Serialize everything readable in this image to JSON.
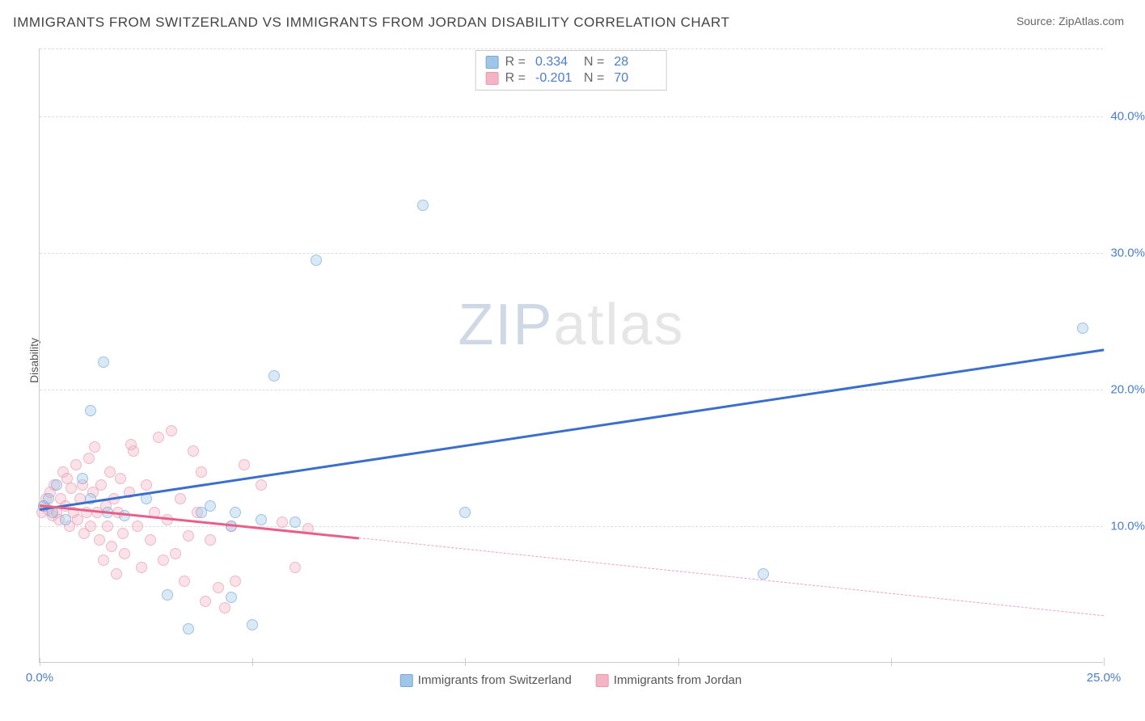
{
  "title": "IMMIGRANTS FROM SWITZERLAND VS IMMIGRANTS FROM JORDAN DISABILITY CORRELATION CHART",
  "source": "Source: ZipAtlas.com",
  "y_axis_label": "Disability",
  "watermark_z": "ZIP",
  "watermark_rest": "atlas",
  "colors": {
    "blue_fill": "#9fc5e8",
    "blue_stroke": "#7ba8d8",
    "blue_line": "#3b6fc9",
    "pink_fill": "#f4b4c4",
    "pink_stroke": "#e89bb0",
    "pink_line": "#e85f8a",
    "axis_text": "#4a7ec9",
    "grid": "#dddddd",
    "background": "#ffffff"
  },
  "xlim": [
    0,
    25
  ],
  "ylim": [
    0,
    45
  ],
  "y_ticks": [
    10,
    20,
    30,
    40
  ],
  "y_tick_labels": [
    "10.0%",
    "20.0%",
    "30.0%",
    "40.0%"
  ],
  "x_ticks": [
    0,
    5,
    10,
    15,
    20,
    25
  ],
  "x_tick_labels": [
    "0.0%",
    "",
    "",
    "",
    "",
    "25.0%"
  ],
  "stats": [
    {
      "swatch": "#9fc5e8",
      "swatch_border": "#7ba8d8",
      "r_label": "R =",
      "r": "0.334",
      "n_label": "N =",
      "n": "28"
    },
    {
      "swatch": "#f4b4c4",
      "swatch_border": "#e89bb0",
      "r_label": "R =",
      "r": "-0.201",
      "n_label": "N =",
      "n": "70"
    }
  ],
  "legend": [
    {
      "swatch": "#9fc5e8",
      "swatch_border": "#7ba8d8",
      "label": "Immigrants from Switzerland"
    },
    {
      "swatch": "#f4b4c4",
      "swatch_border": "#e89bb0",
      "label": "Immigrants from Jordan"
    }
  ],
  "series": {
    "switzerland": {
      "color_class": "blue",
      "trend": {
        "x1": 0,
        "y1": 11.3,
        "x2": 25,
        "y2": 23.0,
        "color": "#3b6fc9"
      },
      "points": [
        [
          0.1,
          11.5
        ],
        [
          0.2,
          12.0
        ],
        [
          0.3,
          11.0
        ],
        [
          0.4,
          13.0
        ],
        [
          0.6,
          10.5
        ],
        [
          1.0,
          13.5
        ],
        [
          1.2,
          12.0
        ],
        [
          1.5,
          22.0
        ],
        [
          1.6,
          11.0
        ],
        [
          1.2,
          18.5
        ],
        [
          3.0,
          5.0
        ],
        [
          3.8,
          11.0
        ],
        [
          3.5,
          2.5
        ],
        [
          4.5,
          4.8
        ],
        [
          4.6,
          11.0
        ],
        [
          4.5,
          10.0
        ],
        [
          5.0,
          2.8
        ],
        [
          5.2,
          10.5
        ],
        [
          5.5,
          21.0
        ],
        [
          6.0,
          10.3
        ],
        [
          6.5,
          29.5
        ],
        [
          9.0,
          33.5
        ],
        [
          10.0,
          11.0
        ],
        [
          4.0,
          11.5
        ],
        [
          2.0,
          10.8
        ],
        [
          17.0,
          6.5
        ],
        [
          24.5,
          24.5
        ],
        [
          2.5,
          12.0
        ]
      ]
    },
    "jordan": {
      "color_class": "pink",
      "trend_solid": {
        "x1": 0,
        "y1": 11.6,
        "x2": 7.5,
        "y2": 9.2,
        "color": "#e85f8a"
      },
      "trend_dash": {
        "x1": 7.5,
        "y1": 9.2,
        "x2": 25,
        "y2": 3.5,
        "color": "#f0a3b8"
      },
      "points": [
        [
          0.05,
          11.0
        ],
        [
          0.1,
          11.5
        ],
        [
          0.15,
          12.0
        ],
        [
          0.2,
          11.2
        ],
        [
          0.25,
          12.5
        ],
        [
          0.3,
          10.8
        ],
        [
          0.35,
          13.0
        ],
        [
          0.4,
          11.0
        ],
        [
          0.45,
          10.5
        ],
        [
          0.5,
          12.0
        ],
        [
          0.55,
          14.0
        ],
        [
          0.6,
          11.5
        ],
        [
          0.65,
          13.5
        ],
        [
          0.7,
          10.0
        ],
        [
          0.75,
          12.8
        ],
        [
          0.8,
          11.0
        ],
        [
          0.85,
          14.5
        ],
        [
          0.9,
          10.5
        ],
        [
          0.95,
          12.0
        ],
        [
          1.0,
          13.0
        ],
        [
          1.05,
          9.5
        ],
        [
          1.1,
          11.0
        ],
        [
          1.15,
          15.0
        ],
        [
          1.2,
          10.0
        ],
        [
          1.25,
          12.5
        ],
        [
          1.3,
          15.8
        ],
        [
          1.35,
          11.0
        ],
        [
          1.4,
          9.0
        ],
        [
          1.45,
          13.0
        ],
        [
          1.5,
          7.5
        ],
        [
          1.55,
          11.5
        ],
        [
          1.6,
          10.0
        ],
        [
          1.65,
          14.0
        ],
        [
          1.7,
          8.5
        ],
        [
          1.75,
          12.0
        ],
        [
          1.8,
          6.5
        ],
        [
          1.85,
          11.0
        ],
        [
          1.9,
          13.5
        ],
        [
          1.95,
          9.5
        ],
        [
          2.0,
          8.0
        ],
        [
          2.1,
          12.5
        ],
        [
          2.2,
          15.5
        ],
        [
          2.3,
          10.0
        ],
        [
          2.4,
          7.0
        ],
        [
          2.5,
          13.0
        ],
        [
          2.6,
          9.0
        ],
        [
          2.7,
          11.0
        ],
        [
          2.8,
          16.5
        ],
        [
          2.9,
          7.5
        ],
        [
          3.0,
          10.5
        ],
        [
          3.1,
          17.0
        ],
        [
          3.2,
          8.0
        ],
        [
          3.3,
          12.0
        ],
        [
          3.4,
          6.0
        ],
        [
          3.5,
          9.3
        ],
        [
          3.6,
          15.5
        ],
        [
          3.7,
          11.0
        ],
        [
          3.8,
          14.0
        ],
        [
          3.9,
          4.5
        ],
        [
          4.0,
          9.0
        ],
        [
          4.2,
          5.5
        ],
        [
          4.35,
          4.0
        ],
        [
          4.5,
          10.0
        ],
        [
          4.6,
          6.0
        ],
        [
          4.8,
          14.5
        ],
        [
          5.2,
          13.0
        ],
        [
          5.7,
          10.3
        ],
        [
          6.0,
          7.0
        ],
        [
          6.3,
          9.8
        ],
        [
          2.15,
          16.0
        ]
      ]
    }
  }
}
